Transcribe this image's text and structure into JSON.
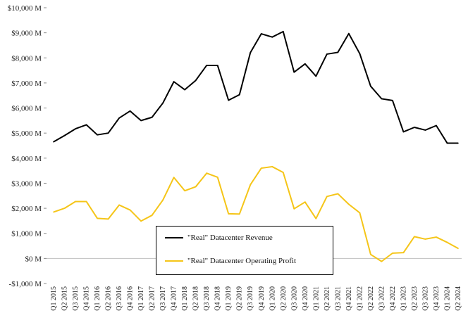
{
  "chart_data": {
    "type": "line",
    "title": "",
    "xlabel": "",
    "ylabel": "",
    "ylim": [
      -1000,
      10000
    ],
    "y_ticks": [
      -1000,
      0,
      1000,
      2000,
      3000,
      4000,
      5000,
      6000,
      7000,
      8000,
      9000,
      10000
    ],
    "y_tick_labels": [
      "-$1,000 M",
      "$0 M",
      "$1,000 M",
      "$2,000 M",
      "$3,000 M",
      "$4,000 M",
      "$5,000 M",
      "$6,000 M",
      "$7,000 M",
      "$8,000 M",
      "$9,000 M",
      "$10,000 M"
    ],
    "grid": false,
    "legend_position": "bottom-center",
    "categories": [
      "Q1 2015",
      "Q2 2015",
      "Q3 2015",
      "Q4 2015",
      "Q1 2016",
      "Q2 2016",
      "Q3 2016",
      "Q4 2016",
      "Q1 2017",
      "Q2 2017",
      "Q3 2017",
      "Q4 2017",
      "Q1 2018",
      "Q2 2018",
      "Q3 2018",
      "Q4 2018",
      "Q1 2019",
      "Q2 2019",
      "Q3 2019",
      "Q4 2019",
      "Q1 2020",
      "Q2 2020",
      "Q3 2020",
      "Q4 2020",
      "Q1 2021",
      "Q2 2021",
      "Q3 2021",
      "Q4 2021",
      "Q1 2022",
      "Q2 2022",
      "Q3 2022",
      "Q4 2022",
      "Q1 2023",
      "Q2 2023",
      "Q3 2023",
      "Q4 2023",
      "Q1 2024",
      "Q2 2024"
    ],
    "series": [
      {
        "name": "\"Real\" Datacenter Revenue",
        "color": "#000000",
        "values": [
          4650,
          4900,
          5170,
          5330,
          4930,
          5000,
          5600,
          5880,
          5500,
          5630,
          6200,
          7050,
          6730,
          7100,
          7700,
          7700,
          6310,
          6530,
          8210,
          8960,
          8830,
          9050,
          7430,
          7760,
          7270,
          8150,
          8220,
          8970,
          8170,
          6870,
          6370,
          6300,
          5050,
          5230,
          5120,
          5300,
          4600,
          4600
        ]
      },
      {
        "name": "\"Real\" Datacenter Operating Profit",
        "color": "#F5C518",
        "values": [
          1850,
          2000,
          2270,
          2270,
          1600,
          1570,
          2130,
          1930,
          1490,
          1720,
          2330,
          3230,
          2700,
          2860,
          3400,
          3240,
          1780,
          1770,
          2940,
          3600,
          3660,
          3430,
          1980,
          2250,
          1590,
          2470,
          2580,
          2160,
          1820,
          160,
          -120,
          210,
          230,
          870,
          770,
          850,
          640,
          400
        ]
      }
    ]
  }
}
